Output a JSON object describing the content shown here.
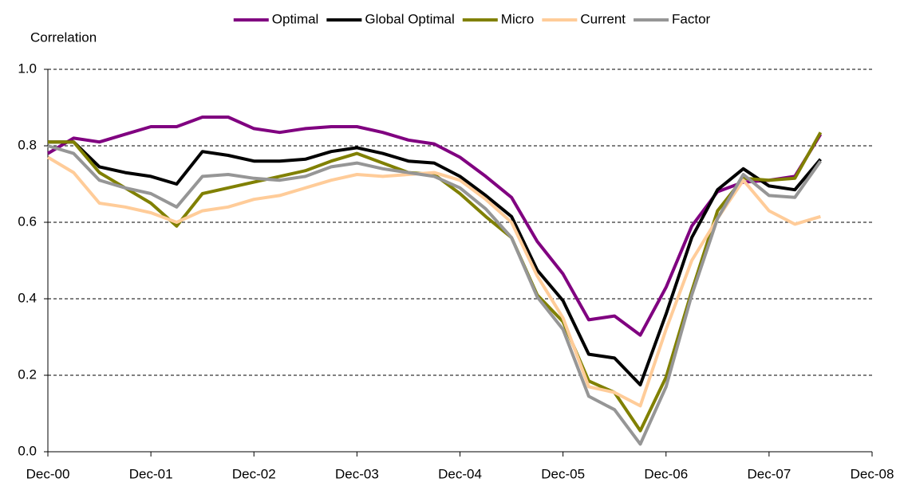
{
  "chart_data": {
    "type": "line",
    "y_label": "Correlation",
    "categories": [
      "Dec-00",
      null,
      null,
      null,
      "Dec-01",
      null,
      null,
      null,
      "Dec-02",
      null,
      null,
      null,
      "Dec-03",
      null,
      null,
      null,
      "Dec-04",
      null,
      null,
      null,
      "Dec-05",
      null,
      null,
      null,
      "Dec-06",
      null,
      null,
      null,
      "Dec-07",
      null,
      null,
      null,
      "Dec-08"
    ],
    "ylim": [
      0,
      1
    ],
    "yticks": [
      {
        "value": 0,
        "label": "0.0"
      },
      0.2,
      0.4,
      0.6,
      0.8,
      {
        "value": 1,
        "label": "1.0"
      }
    ],
    "grid": true,
    "legend": "top",
    "series": [
      {
        "name": "Optimal",
        "color": "#800080",
        "values": [
          0.78,
          0.82,
          0.81,
          0.83,
          0.85,
          0.85,
          0.875,
          0.875,
          0.845,
          0.835,
          0.845,
          0.85,
          0.85,
          0.835,
          0.815,
          0.805,
          0.77,
          0.72,
          0.665,
          0.55,
          0.465,
          0.345,
          0.355,
          0.305,
          0.43,
          0.59,
          0.68,
          0.705,
          0.71,
          0.72,
          0.83,
          null,
          null
        ]
      },
      {
        "name": "Global Optimal",
        "color": "#000000",
        "values": [
          0.81,
          0.81,
          0.745,
          0.73,
          0.72,
          0.7,
          0.785,
          0.775,
          0.76,
          0.76,
          0.765,
          0.785,
          0.795,
          0.78,
          0.76,
          0.755,
          0.72,
          0.67,
          0.615,
          0.475,
          0.395,
          0.255,
          0.245,
          0.175,
          0.36,
          0.56,
          0.685,
          0.74,
          0.695,
          0.685,
          0.765,
          null,
          null
        ]
      },
      {
        "name": "Micro",
        "color": "#808000",
        "values": [
          0.81,
          0.81,
          0.73,
          0.69,
          0.65,
          0.59,
          0.675,
          0.69,
          0.705,
          0.72,
          0.735,
          0.76,
          0.78,
          0.755,
          0.73,
          0.725,
          0.675,
          0.615,
          0.56,
          0.41,
          0.34,
          0.185,
          0.155,
          0.055,
          0.195,
          0.42,
          0.63,
          0.715,
          0.71,
          0.715,
          0.835,
          null,
          null
        ]
      },
      {
        "name": "Current",
        "color": "#FFCC99",
        "values": [
          0.77,
          0.73,
          0.65,
          0.64,
          0.625,
          0.6,
          0.63,
          0.64,
          0.66,
          0.67,
          0.69,
          0.71,
          0.725,
          0.72,
          0.725,
          0.73,
          0.71,
          0.66,
          0.6,
          0.46,
          0.35,
          0.17,
          0.155,
          0.12,
          0.32,
          0.5,
          0.61,
          0.71,
          0.63,
          0.595,
          0.615,
          null,
          null
        ]
      },
      {
        "name": "Factor",
        "color": "#969696",
        "values": [
          0.8,
          0.78,
          0.71,
          0.69,
          0.675,
          0.64,
          0.72,
          0.725,
          0.715,
          0.71,
          0.72,
          0.745,
          0.755,
          0.74,
          0.73,
          0.72,
          0.69,
          0.635,
          0.56,
          0.405,
          0.32,
          0.145,
          0.11,
          0.02,
          0.17,
          0.41,
          0.61,
          0.725,
          0.67,
          0.665,
          0.76,
          null,
          null
        ]
      }
    ]
  }
}
